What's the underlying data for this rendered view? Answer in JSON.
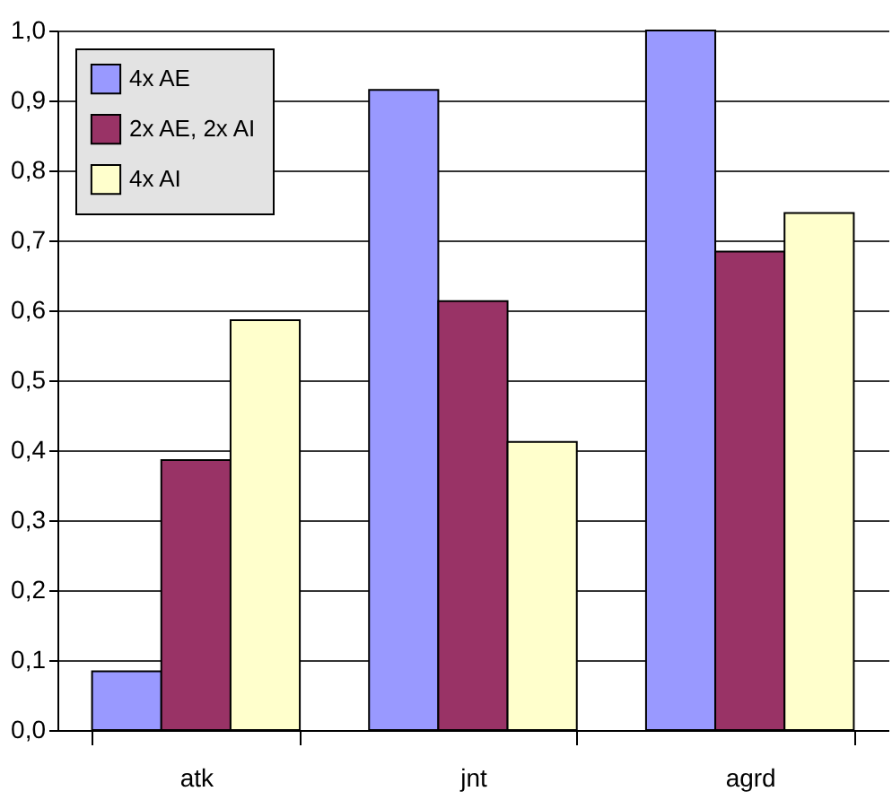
{
  "chart_data": {
    "type": "bar",
    "categories": [
      "atk",
      "jnt",
      "agrd"
    ],
    "series": [
      {
        "name": "4x AE",
        "color": "#9999ff",
        "values": [
          0.084,
          0.915,
          1.0
        ]
      },
      {
        "name": "2x AE, 2x AI",
        "color": "#993366",
        "values": [
          0.386,
          0.613,
          0.684
        ]
      },
      {
        "name": "4x AI",
        "color": "#ffffcc",
        "values": [
          0.586,
          0.412,
          0.739
        ]
      }
    ],
    "ylim": [
      0,
      1.0
    ],
    "yticks": [
      {
        "value": 0,
        "label": "0,0"
      },
      {
        "value": 0.1,
        "label": "0,1"
      },
      {
        "value": 0.2,
        "label": "0,2"
      },
      {
        "value": 0.3,
        "label": "0,3"
      },
      {
        "value": 0.4,
        "label": "0,4"
      },
      {
        "value": 0.5,
        "label": "0,5"
      },
      {
        "value": 0.6,
        "label": "0,6"
      },
      {
        "value": 0.7,
        "label": "0,7"
      },
      {
        "value": 0.8,
        "label": "0,8"
      },
      {
        "value": 0.9,
        "label": "0,9"
      },
      {
        "value": 1.0,
        "label": "1,0"
      }
    ],
    "grid": "y",
    "legend": "top left"
  }
}
